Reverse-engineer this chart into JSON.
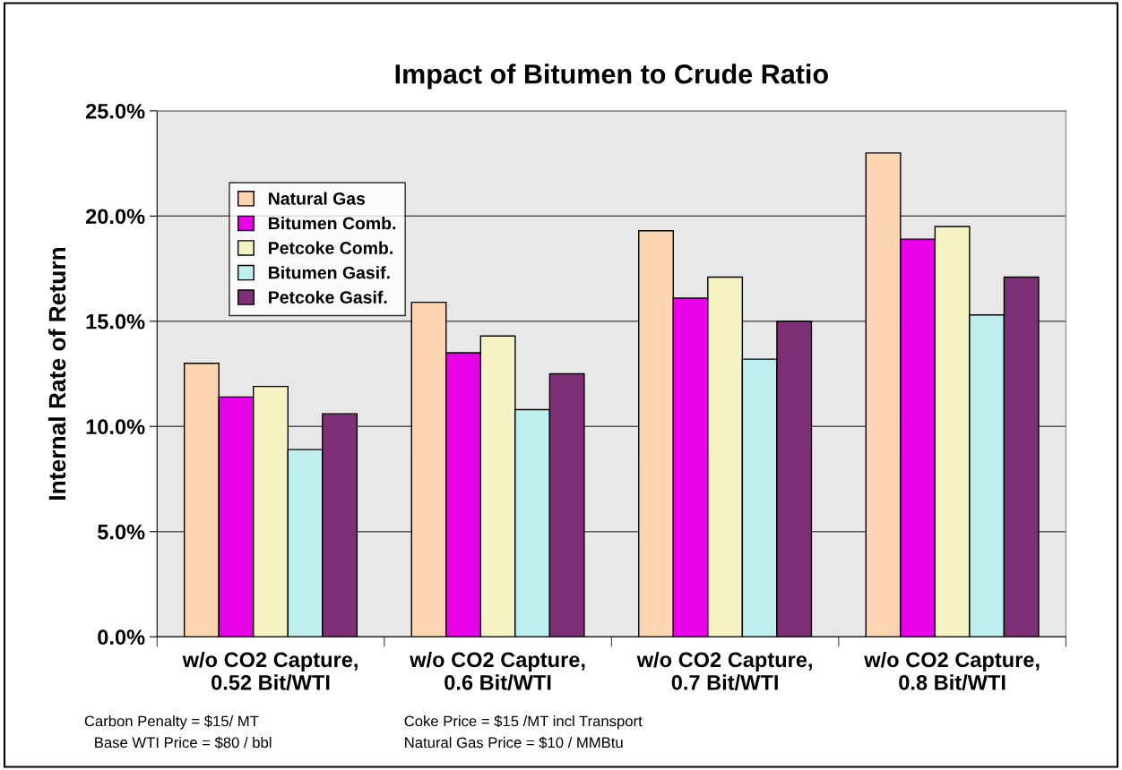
{
  "chart_data": {
    "type": "bar",
    "title": "Impact of Bitumen to Crude Ratio",
    "ylabel": "Internal Rate of Return",
    "categories": [
      "w/o CO2 Capture,\n0.52 Bit/WTI",
      "w/o CO2 Capture,\n0.6 Bit/WTI",
      "w/o CO2 Capture,\n0.7 Bit/WTI",
      "w/o CO2 Capture,\n0.8 Bit/WTI"
    ],
    "series": [
      {
        "name": "Natural Gas",
        "color": "#fdd5b0",
        "values": [
          13.0,
          15.9,
          19.3,
          23.0
        ]
      },
      {
        "name": "Bitumen Comb.",
        "color": "#e800e8",
        "values": [
          11.4,
          13.5,
          16.1,
          18.9
        ]
      },
      {
        "name": "Petcoke Comb.",
        "color": "#f5f2c4",
        "values": [
          11.9,
          14.3,
          17.1,
          19.5
        ]
      },
      {
        "name": "Bitumen Gasif.",
        "color": "#bfeeee",
        "values": [
          8.9,
          10.8,
          13.2,
          15.3
        ]
      },
      {
        "name": "Petcoke Gasif.",
        "color": "#7e3077",
        "values": [
          10.6,
          12.5,
          15.0,
          17.1
        ]
      }
    ],
    "ylim": [
      0,
      25
    ],
    "yticks": [
      {
        "value": 0,
        "label": "0.0%"
      },
      {
        "value": 5,
        "label": "5.0%"
      },
      {
        "value": 10,
        "label": "10.0%"
      },
      {
        "value": 15,
        "label": "15.0%"
      },
      {
        "value": 20,
        "label": "20.0%"
      },
      {
        "value": 25,
        "label": "25.0%"
      }
    ],
    "grid": "y",
    "legend": "top left",
    "annotations": [
      "Carbon Penalty = $15/ MT",
      " Base WTI Price = $80 / bbl",
      "Coke Price = $15 /MT incl Transport",
      "Natural Gas Price = $10 / MMBtu"
    ]
  }
}
